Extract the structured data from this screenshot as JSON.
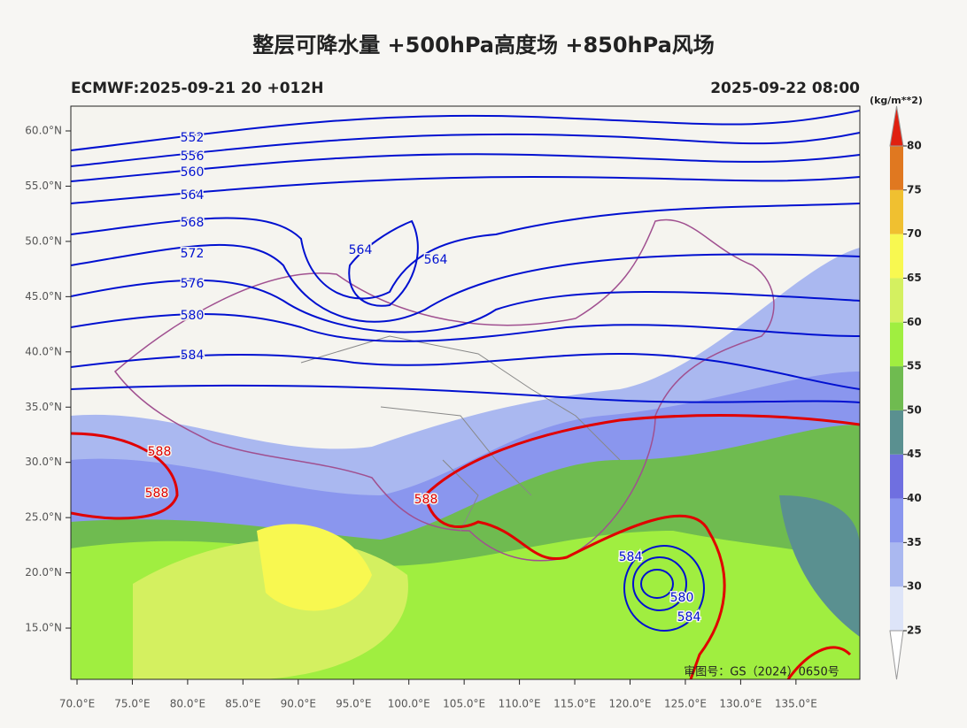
{
  "header": {
    "title": "整层可降水量 +500hPa高度场 +850hPa风场",
    "model_run": "ECMWF:2025-09-21 20 +012H",
    "valid_time": "2025-09-22 08:00"
  },
  "map": {
    "lon_ticks": [
      {
        "value": 70,
        "label": "70.0°E"
      },
      {
        "value": 75,
        "label": "75.0°E"
      },
      {
        "value": 80,
        "label": "80.0°E"
      },
      {
        "value": 85,
        "label": "85.0°E"
      },
      {
        "value": 90,
        "label": "90.0°E"
      },
      {
        "value": 95,
        "label": "95.0°E"
      },
      {
        "value": 100,
        "label": "100.0°E"
      },
      {
        "value": 105,
        "label": "105.0°E"
      },
      {
        "value": 110,
        "label": "110.0°E"
      },
      {
        "value": 115,
        "label": "115.0°E"
      },
      {
        "value": 120,
        "label": "120.0°E"
      },
      {
        "value": 125,
        "label": "125.0°E"
      },
      {
        "value": 130,
        "label": "130.0°E"
      },
      {
        "value": 135,
        "label": "135.0°E"
      }
    ],
    "lat_ticks": [
      {
        "value": 15,
        "label": "15.0°N"
      },
      {
        "value": 20,
        "label": "20.0°N"
      },
      {
        "value": 25,
        "label": "25.0°N"
      },
      {
        "value": 30,
        "label": "30.0°N"
      },
      {
        "value": 35,
        "label": "35.0°N"
      },
      {
        "value": 40,
        "label": "40.0°N"
      },
      {
        "value": 45,
        "label": "45.0°N"
      },
      {
        "value": 50,
        "label": "50.0°N"
      },
      {
        "value": 55,
        "label": "55.0°N"
      },
      {
        "value": 60,
        "label": "60.0°N"
      }
    ],
    "contour_labels": [
      "552",
      "556",
      "560",
      "564",
      "568",
      "572",
      "576",
      "580",
      "584",
      "564",
      "564",
      "588",
      "588",
      "588",
      "584",
      "580",
      "584"
    ],
    "watermark": "审图号：GS（2024）0650号"
  },
  "colorbar": {
    "unit": "(kg/m**2)",
    "ticks": [
      25,
      30,
      35,
      40,
      45,
      50,
      55,
      60,
      65,
      70,
      75,
      80
    ],
    "colors": [
      "#dde4f8",
      "#aab8f0",
      "#8a96ee",
      "#6f6fe0",
      "#5a9090",
      "#6fbb50",
      "#a0ee40",
      "#d4f060",
      "#f8f850",
      "#f0c030",
      "#e07820"
    ],
    "over_color": "#e02010",
    "under_color": "#ffffff"
  }
}
